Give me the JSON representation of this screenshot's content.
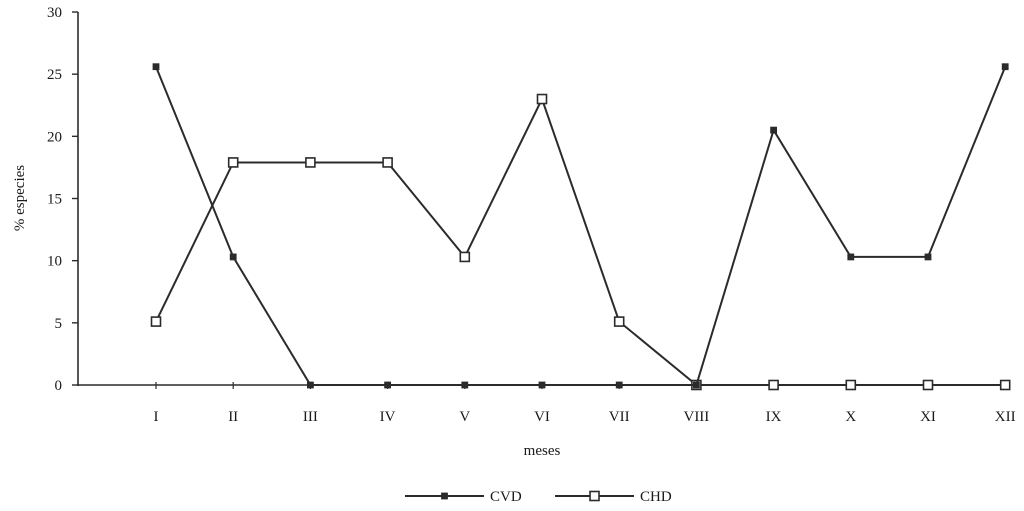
{
  "chart_data": {
    "type": "line",
    "categories": [
      "I",
      "II",
      "III",
      "IV",
      "V",
      "VI",
      "VII",
      "VIII",
      "IX",
      "X",
      "XI",
      "XII"
    ],
    "series": [
      {
        "name": "CVD",
        "marker": "filled-square",
        "color": "#2b2b2b",
        "values": [
          25.6,
          10.3,
          0,
          0,
          0,
          0,
          0,
          0,
          20.5,
          10.3,
          10.3,
          25.6
        ]
      },
      {
        "name": "CHD",
        "marker": "open-square",
        "color": "#2b2b2b",
        "values": [
          5.1,
          17.9,
          17.9,
          17.9,
          10.3,
          23.0,
          5.1,
          0,
          0,
          0,
          0,
          0
        ]
      }
    ],
    "xlabel": "meses",
    "ylabel": "% especies",
    "ylim": [
      0,
      30
    ],
    "yticks": [
      0,
      5,
      10,
      15,
      20,
      25,
      30
    ],
    "grid": false,
    "legend": "bottom-center"
  }
}
